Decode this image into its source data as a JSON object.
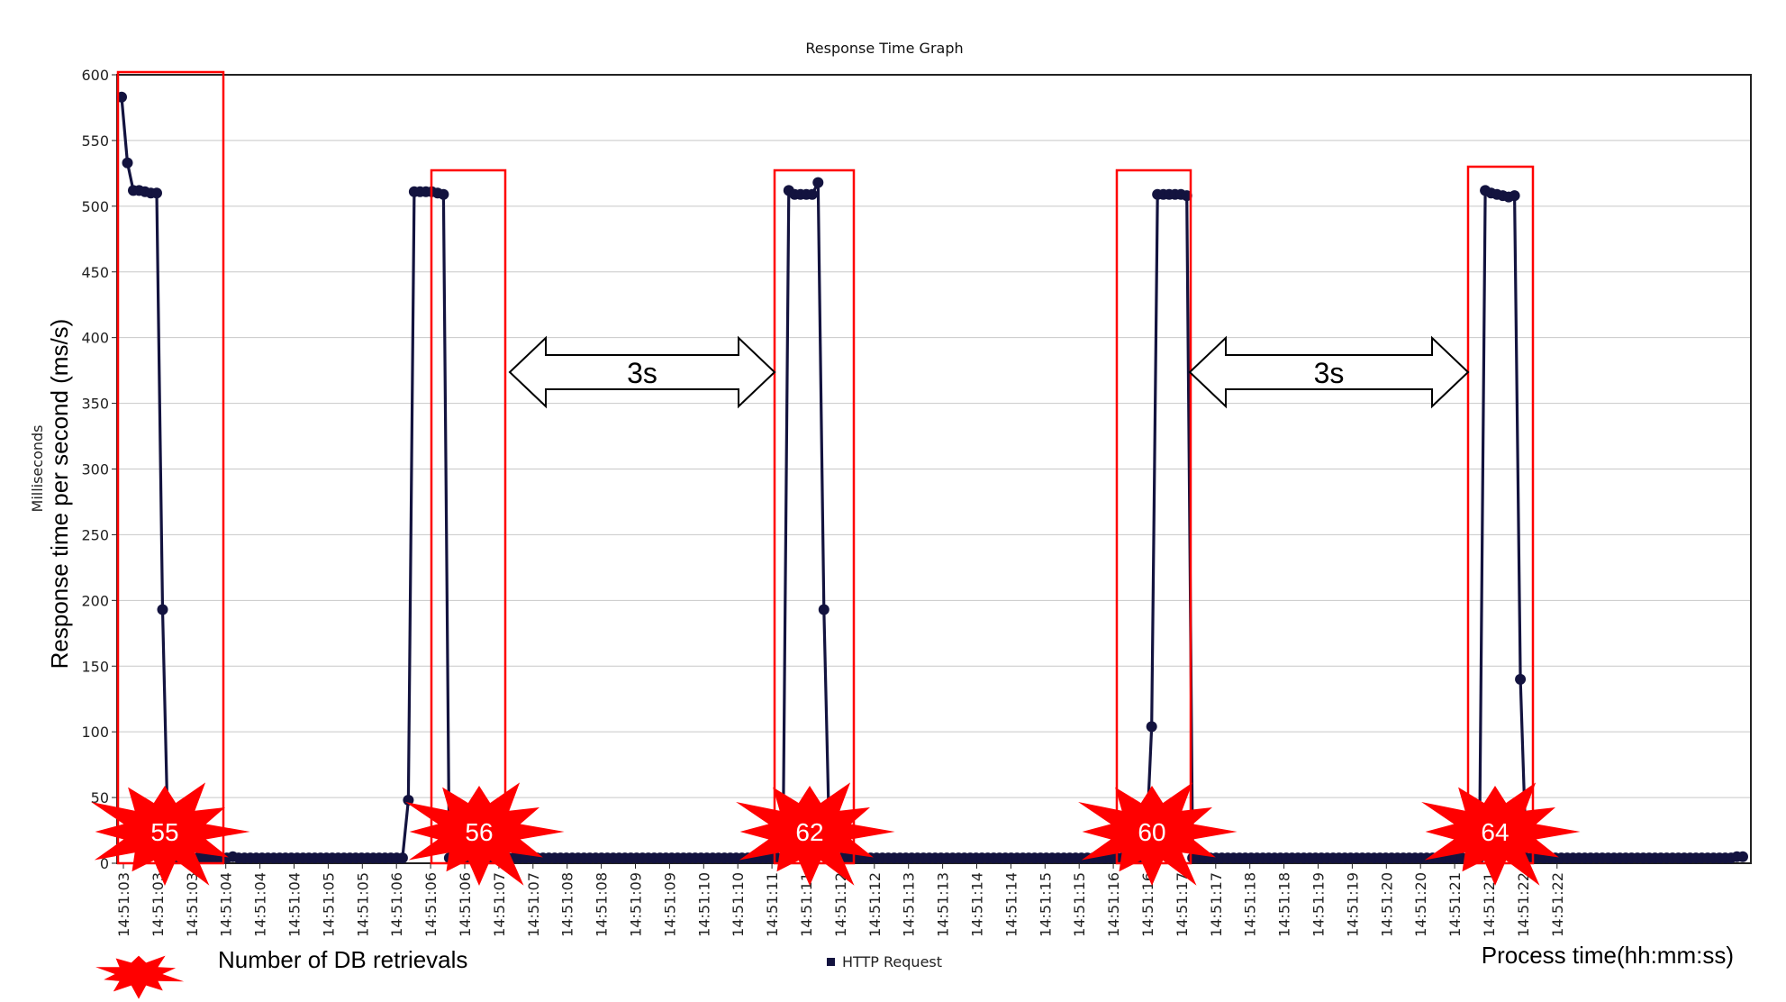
{
  "chart_data": {
    "type": "line",
    "title": "Response Time Graph",
    "ylabel_small": "Milliseconds",
    "ylabel_large": "Response time per second (ms/s)",
    "xlabel": "Process time(hh:mm:ss)",
    "ylim": [
      0,
      600
    ],
    "yticks": [
      0,
      50,
      100,
      150,
      200,
      250,
      300,
      350,
      400,
      450,
      500,
      550,
      600
    ],
    "grid": true,
    "x_tick_labels": [
      "14:51:03",
      "14:51:03",
      "14:51:03",
      "14:51:04",
      "14:51:04",
      "14:51:04",
      "14:51:05",
      "14:51:05",
      "14:51:06",
      "14:51:06",
      "14:51:06",
      "14:51:07",
      "14:51:07",
      "14:51:08",
      "14:51:08",
      "14:51:09",
      "14:51:09",
      "14:51:10",
      "14:51:10",
      "14:51:11",
      "14:51:11",
      "14:51:12",
      "14:51:12",
      "14:51:13",
      "14:51:13",
      "14:51:14",
      "14:51:14",
      "14:51:15",
      "14:51:15",
      "14:51:16",
      "14:51:16",
      "14:51:17",
      "14:51:17",
      "14:51:18",
      "14:51:18",
      "14:51:19",
      "14:51:19",
      "14:51:20",
      "14:51:20",
      "14:51:21",
      "14:51:21",
      "14:51:22",
      "14:51:22"
    ],
    "series": [
      {
        "name": "HTTP Request",
        "color": "#13133f",
        "values": [
          583,
          533,
          512,
          512,
          511,
          510,
          510,
          193,
          5,
          4,
          4,
          4,
          4,
          4,
          4,
          4,
          4,
          4,
          4,
          5,
          4,
          4,
          4,
          4,
          4,
          4,
          4,
          4,
          4,
          4,
          4,
          4,
          4,
          4,
          4,
          4,
          4,
          4,
          4,
          4,
          4,
          4,
          4,
          4,
          4,
          4,
          4,
          4,
          4,
          48,
          511,
          511,
          511,
          511,
          510,
          509,
          4,
          4,
          4,
          4,
          4,
          4,
          4,
          4,
          4,
          4,
          4,
          4,
          4,
          4,
          4,
          4,
          4,
          4,
          4,
          4,
          4,
          4,
          4,
          4,
          4,
          4,
          4,
          4,
          4,
          4,
          4,
          4,
          4,
          4,
          4,
          4,
          4,
          4,
          4,
          4,
          4,
          4,
          4,
          4,
          4,
          4,
          4,
          4,
          4,
          4,
          4,
          4,
          4,
          4,
          4,
          4,
          4,
          4,
          512,
          509,
          509,
          509,
          509,
          518,
          193,
          4,
          4,
          4,
          4,
          4,
          4,
          4,
          4,
          4,
          4,
          4,
          4,
          4,
          4,
          4,
          4,
          4,
          4,
          4,
          4,
          4,
          4,
          4,
          4,
          4,
          4,
          4,
          4,
          4,
          4,
          4,
          4,
          4,
          4,
          4,
          4,
          4,
          4,
          4,
          4,
          4,
          4,
          4,
          4,
          4,
          4,
          4,
          4,
          4,
          4,
          4,
          4,
          4,
          4,
          4,
          104,
          509,
          509,
          509,
          509,
          509,
          508,
          4,
          4,
          4,
          4,
          4,
          4,
          4,
          4,
          4,
          4,
          4,
          4,
          4,
          4,
          4,
          4,
          4,
          4,
          4,
          4,
          4,
          4,
          4,
          4,
          4,
          4,
          4,
          4,
          4,
          4,
          4,
          4,
          4,
          4,
          4,
          4,
          4,
          4,
          4,
          4,
          4,
          4,
          4,
          4,
          4,
          4,
          4,
          4,
          4,
          4,
          512,
          510,
          509,
          508,
          507,
          508,
          140,
          4,
          4,
          4,
          4,
          4,
          4,
          4,
          4,
          4,
          4,
          4,
          4,
          4,
          4,
          4,
          4,
          4,
          4,
          4,
          4,
          4,
          4,
          4,
          4,
          4,
          4,
          4,
          4,
          4,
          4,
          4,
          4,
          4,
          4,
          4,
          4,
          5,
          5
        ]
      }
    ],
    "legend": {
      "label": "HTTP Request",
      "placement": "bottom-center"
    },
    "annotations": {
      "db_retrieval_counts": [
        "55",
        "56",
        "62",
        "60",
        "64"
      ],
      "db_retrieval_legend": "Number of DB retrievals",
      "interval_labels": [
        "3s",
        "3s"
      ],
      "highlight_color": "#ff0000"
    }
  }
}
